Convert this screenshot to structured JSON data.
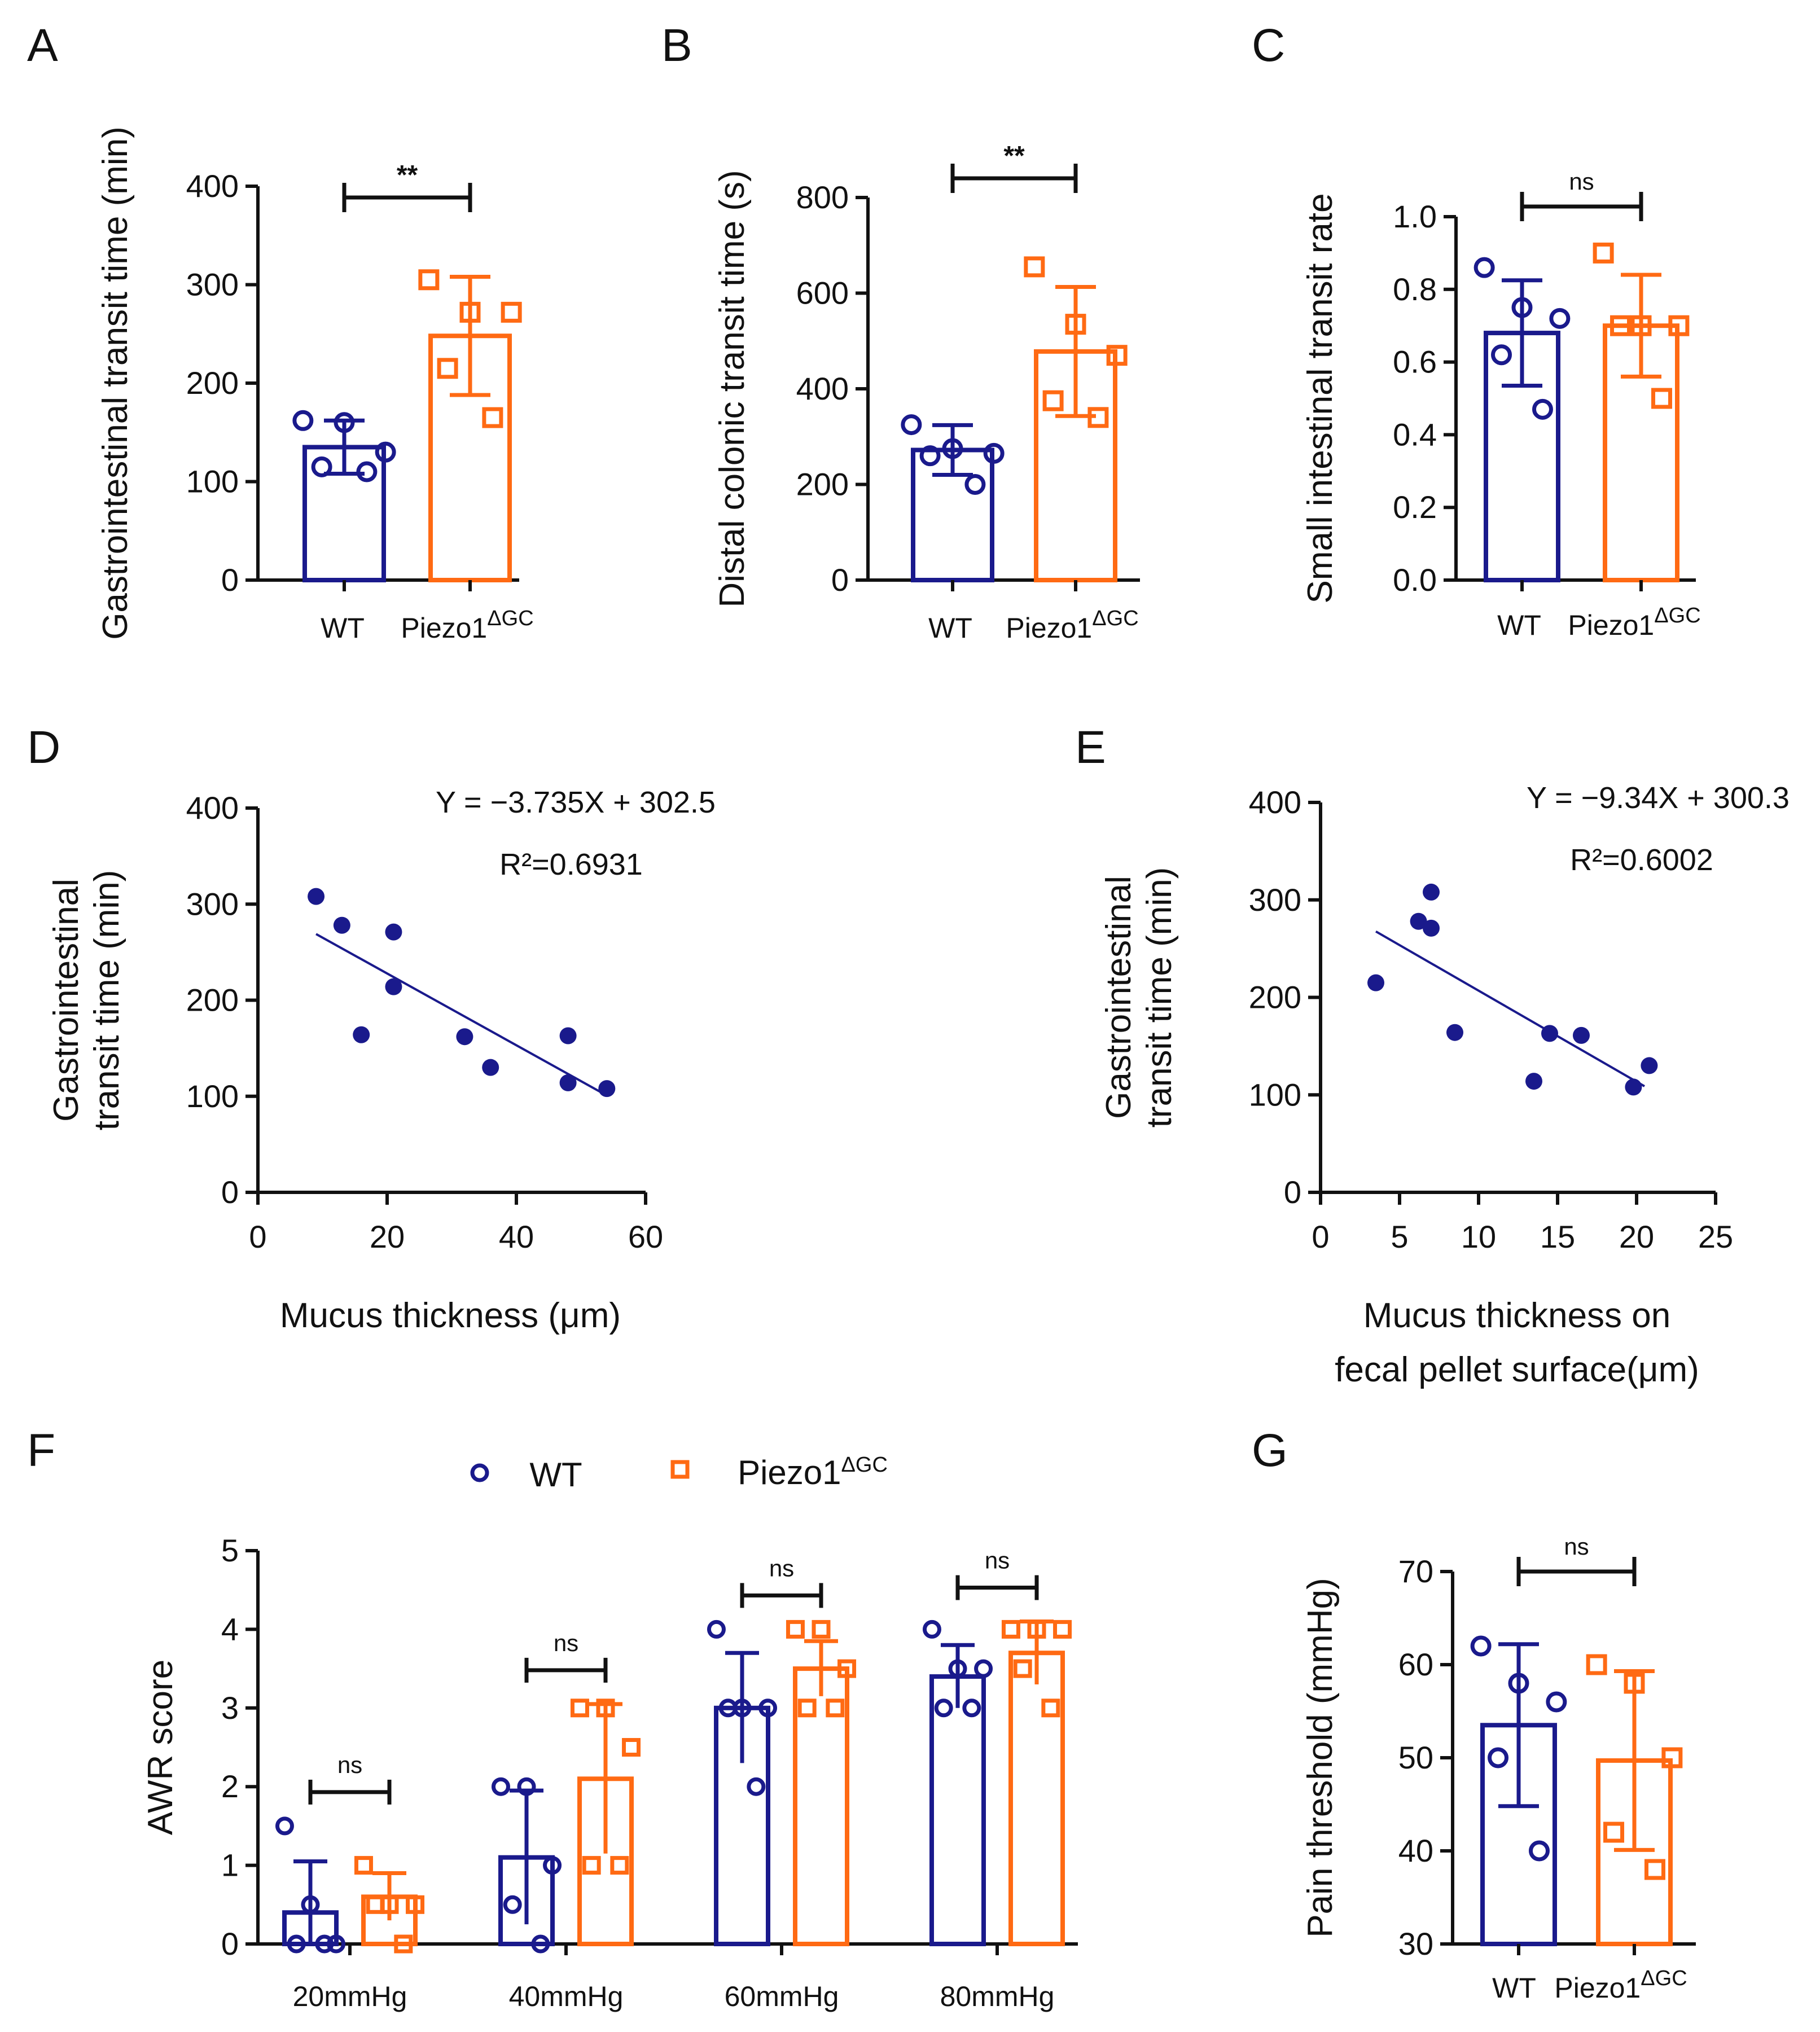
{
  "colors": {
    "wt": "#1a1a8c",
    "piezo": "#ff6a13",
    "axis": "#111111"
  },
  "chart_data": [
    {
      "id": "A",
      "type": "bar",
      "panel_label": "A",
      "ylabel": "Gastrointestinal transit time (min)",
      "ylim": [
        0,
        400
      ],
      "yticks": [
        "0",
        "100",
        "200",
        "300",
        "400"
      ],
      "categories": [
        {
          "label": "WT",
          "sup": ""
        },
        {
          "label": "Piezo1",
          "sup": "ΔGC"
        }
      ],
      "series": [
        {
          "name": "WT",
          "color": "wt",
          "marker": "circle",
          "mean": 135,
          "sd": 27,
          "points": [
            162,
            160,
            130,
            115,
            110
          ]
        },
        {
          "name": "Piezo1ΔGC",
          "color": "piezo",
          "marker": "square",
          "mean": 248,
          "sd": 60,
          "points": [
            305,
            272,
            272,
            215,
            165
          ]
        }
      ],
      "significance": {
        "text": "**",
        "kind": "stars"
      }
    },
    {
      "id": "B",
      "type": "bar",
      "panel_label": "B",
      "ylabel": "Distal colonic transit time (s)",
      "ylim": [
        0,
        800
      ],
      "yticks": [
        "0",
        "200",
        "400",
        "600",
        "800"
      ],
      "categories": [
        {
          "label": "WT",
          "sup": ""
        },
        {
          "label": "Piezo1",
          "sup": "ΔGC"
        }
      ],
      "series": [
        {
          "name": "WT",
          "color": "wt",
          "marker": "circle",
          "mean": 272,
          "sd": 52,
          "points": [
            325,
            275,
            265,
            260,
            200
          ]
        },
        {
          "name": "Piezo1ΔGC",
          "color": "piezo",
          "marker": "square",
          "mean": 478,
          "sd": 135,
          "points": [
            655,
            535,
            470,
            375,
            340
          ]
        }
      ],
      "significance": {
        "text": "**",
        "kind": "stars"
      }
    },
    {
      "id": "C",
      "type": "bar",
      "panel_label": "C",
      "ylabel": "Small intestinal transit rate",
      "ylim": [
        0,
        1.0
      ],
      "yticks": [
        "0.0",
        "0.2",
        "0.4",
        "0.6",
        "0.8",
        "1.0"
      ],
      "categories": [
        {
          "label": "WT",
          "sup": ""
        },
        {
          "label": "Piezo1",
          "sup": "ΔGC"
        }
      ],
      "series": [
        {
          "name": "WT",
          "color": "wt",
          "marker": "circle",
          "mean": 0.68,
          "sd": 0.145,
          "points": [
            0.86,
            0.75,
            0.72,
            0.62,
            0.47
          ]
        },
        {
          "name": "Piezo1ΔGC",
          "color": "piezo",
          "marker": "square",
          "mean": 0.7,
          "sd": 0.14,
          "points": [
            0.9,
            0.7,
            0.7,
            0.7,
            0.5
          ]
        }
      ],
      "significance": {
        "text": "ns",
        "kind": "ns"
      }
    },
    {
      "id": "D",
      "type": "scatter",
      "panel_label": "D",
      "ylabel": [
        "Gastrointestinal",
        "transit time (min)"
      ],
      "xlabel": [
        "Mucus thickness (μm)"
      ],
      "xlim": [
        0,
        60
      ],
      "xticks": [
        "0",
        "20",
        "40",
        "60"
      ],
      "ylim": [
        0,
        400
      ],
      "yticks": [
        "0",
        "100",
        "200",
        "300",
        "400"
      ],
      "equation": "Y = −3.735X + 302.5",
      "r2": "R²=0.6931",
      "fit": {
        "slope": -3.735,
        "intercept": 302.5,
        "x_range": [
          9,
          54
        ]
      },
      "points": [
        [
          9,
          308
        ],
        [
          13,
          278
        ],
        [
          21,
          271
        ],
        [
          21,
          214
        ],
        [
          16,
          164
        ],
        [
          32,
          162
        ],
        [
          36,
          130
        ],
        [
          48,
          163
        ],
        [
          48,
          114
        ],
        [
          54,
          108
        ]
      ]
    },
    {
      "id": "E",
      "type": "scatter",
      "panel_label": "E",
      "ylabel": [
        "Gastrointestinal",
        "transit time (min)"
      ],
      "xlabel": [
        "Mucus thickness on",
        "fecal pellet surface(μm)"
      ],
      "xlim": [
        0,
        25
      ],
      "xticks": [
        "0",
        "5",
        "10",
        "15",
        "20",
        "25"
      ],
      "ylim": [
        0,
        400
      ],
      "yticks": [
        "0",
        "100",
        "200",
        "300",
        "400"
      ],
      "equation": "Y = −9.34X + 300.3",
      "r2": "R²=0.6002",
      "fit": {
        "slope": -9.34,
        "intercept": 300.3,
        "x_range": [
          3.5,
          20.5
        ]
      },
      "points": [
        [
          3.5,
          215
        ],
        [
          6.2,
          278
        ],
        [
          7.0,
          308
        ],
        [
          7.0,
          271
        ],
        [
          8.5,
          164
        ],
        [
          13.5,
          114
        ],
        [
          14.5,
          163
        ],
        [
          16.5,
          161
        ],
        [
          19.8,
          108
        ],
        [
          20.8,
          130
        ]
      ]
    },
    {
      "id": "F",
      "type": "bar",
      "panel_label": "F",
      "ylabel": "AWR score",
      "ylim": [
        0,
        5
      ],
      "yticks": [
        "0",
        "1",
        "2",
        "3",
        "4",
        "5"
      ],
      "legend": [
        {
          "name": "WT",
          "color": "wt",
          "marker": "circle",
          "label": "WT",
          "sup": ""
        },
        {
          "name": "Piezo1ΔGC",
          "color": "piezo",
          "marker": "square",
          "label": "Piezo1",
          "sup": "ΔGC"
        }
      ],
      "groups": [
        {
          "label": "20mmHg",
          "sig": "ns",
          "wt": {
            "mean": 0.4,
            "sd": 0.65,
            "points": [
              1.5,
              0.5,
              0,
              0,
              0
            ]
          },
          "piezo": {
            "mean": 0.6,
            "sd": 0.3,
            "points": [
              1,
              0.5,
              0.5,
              0.5,
              0
            ]
          }
        },
        {
          "label": "40mmHg",
          "sig": "ns",
          "wt": {
            "mean": 1.1,
            "sd": 0.85,
            "points": [
              2,
              2,
              1,
              0.5,
              0
            ]
          },
          "piezo": {
            "mean": 2.1,
            "sd": 0.95,
            "points": [
              3,
              3,
              2.5,
              1,
              1
            ]
          }
        },
        {
          "label": "60mmHg",
          "sig": "ns",
          "wt": {
            "mean": 3.0,
            "sd": 0.7,
            "points": [
              4,
              3,
              3,
              3,
              2
            ]
          },
          "piezo": {
            "mean": 3.5,
            "sd": 0.35,
            "points": [
              4,
              4,
              3.5,
              3,
              3
            ]
          }
        },
        {
          "label": "80mmHg",
          "sig": "ns",
          "wt": {
            "mean": 3.4,
            "sd": 0.4,
            "points": [
              4,
              3.5,
              3.5,
              3,
              3
            ]
          },
          "piezo": {
            "mean": 3.7,
            "sd": 0.4,
            "points": [
              4,
              4,
              4,
              3.5,
              3
            ]
          }
        }
      ]
    },
    {
      "id": "G",
      "type": "bar",
      "panel_label": "G",
      "ylabel": "Pain threshold (mmHg)",
      "ylim": [
        30,
        70
      ],
      "yticks": [
        "30",
        "40",
        "50",
        "60",
        "70"
      ],
      "categories": [
        {
          "label": "WT",
          "sup": ""
        },
        {
          "label": "Piezo1",
          "sup": "ΔGC"
        }
      ],
      "series": [
        {
          "name": "WT",
          "color": "wt",
          "marker": "circle",
          "mean": 53.5,
          "sd": 8.7,
          "points": [
            62,
            58,
            56,
            50,
            40
          ]
        },
        {
          "name": "Piezo1ΔGC",
          "color": "piezo",
          "marker": "square",
          "mean": 49.7,
          "sd": 9.6,
          "points": [
            60,
            58,
            50,
            42,
            38
          ]
        }
      ],
      "significance": {
        "text": "ns",
        "kind": "ns"
      }
    }
  ]
}
